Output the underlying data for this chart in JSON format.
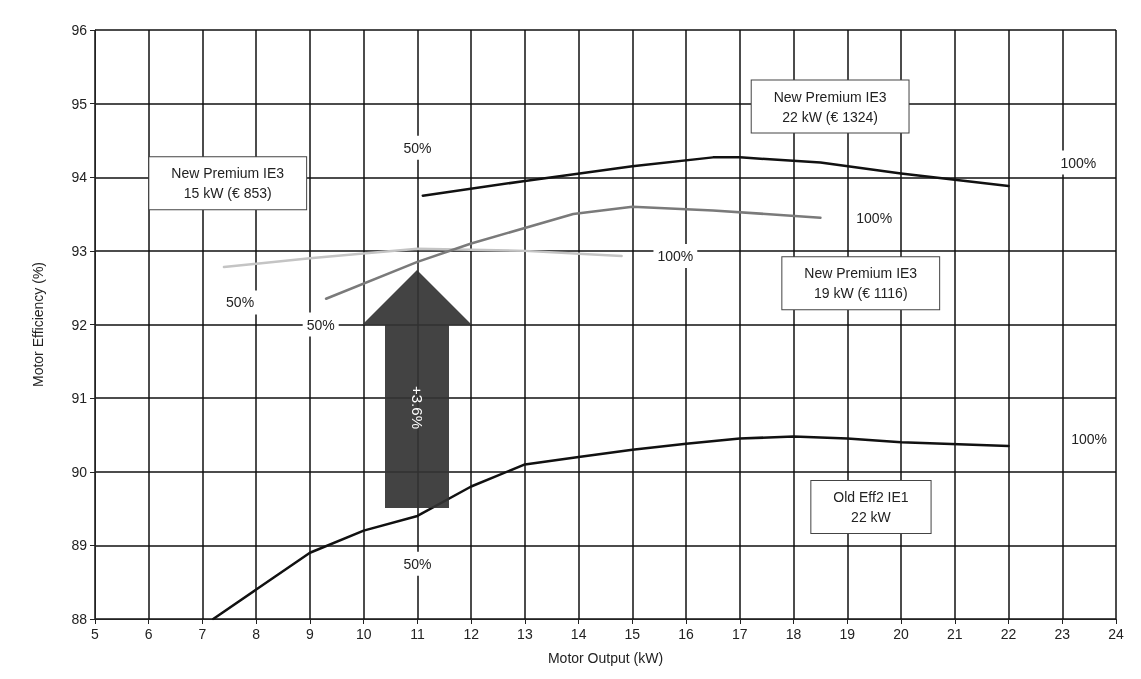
{
  "chart_data": {
    "type": "line",
    "xlabel": "Motor Output (kW)",
    "ylabel": "Motor Efficiency (%)",
    "xlim": [
      5,
      24
    ],
    "xticks": [
      5,
      6,
      7,
      8,
      9,
      10,
      11,
      12,
      13,
      14,
      15,
      16,
      17,
      18,
      19,
      20,
      21,
      22,
      23,
      24
    ],
    "ylim": [
      88,
      96
    ],
    "yticks": [
      88,
      89,
      90,
      91,
      92,
      93,
      94,
      95,
      96
    ],
    "grid": true,
    "series": [
      {
        "color": "#c4c4c4",
        "x": [
          7.4,
          9,
          11,
          13,
          14.8
        ],
        "values": [
          92.78,
          92.9,
          93.03,
          93.0,
          92.93
        ]
      },
      {
        "color": "#7a7a7a",
        "x": [
          9.3,
          11,
          12,
          13.9,
          15,
          16.5,
          18.5
        ],
        "values": [
          92.35,
          92.85,
          93.1,
          93.5,
          93.6,
          93.55,
          93.45
        ]
      },
      {
        "color": "#111111",
        "x": [
          11.1,
          13,
          15,
          16.5,
          17,
          18.5,
          20,
          22
        ],
        "values": [
          93.75,
          93.95,
          94.15,
          94.27,
          94.27,
          94.2,
          94.05,
          93.88
        ]
      },
      {
        "color": "#111111",
        "x": [
          7.2,
          8,
          9,
          10,
          11,
          12,
          13,
          14,
          15,
          16,
          17,
          18,
          19,
          20,
          22
        ],
        "values": [
          88.0,
          88.4,
          88.9,
          89.2,
          89.4,
          89.8,
          90.1,
          90.2,
          90.3,
          90.38,
          90.45,
          90.48,
          90.45,
          90.4,
          90.35
        ]
      }
    ],
    "annotations": [
      "New Premium IE3\n22 kW (€ 1324)",
      {
        "text": "50%",
        "x": 11,
        "y": 94.4
      },
      {
        "text": "100%",
        "x": 23.3,
        "y": 94.2
      },
      "New Premium IE3\n15 kW (€ 853)",
      {
        "text": "50%",
        "x": 7.7,
        "y": 92.3
      },
      {
        "text": "50%",
        "x": 9.2,
        "y": 92.0
      },
      {
        "text": "100%",
        "x": 15.8,
        "y": 92.93
      },
      {
        "text": "100%",
        "x": 19.5,
        "y": 93.45
      },
      "New Premium IE3\n19 kW (€ 1116)",
      {
        "text": "100%",
        "x": 23.5,
        "y": 90.45
      },
      "Old Eff2 IE1\n22 kW",
      {
        "text": "50%",
        "x": 11,
        "y": 88.75
      },
      "+3.6%"
    ]
  }
}
